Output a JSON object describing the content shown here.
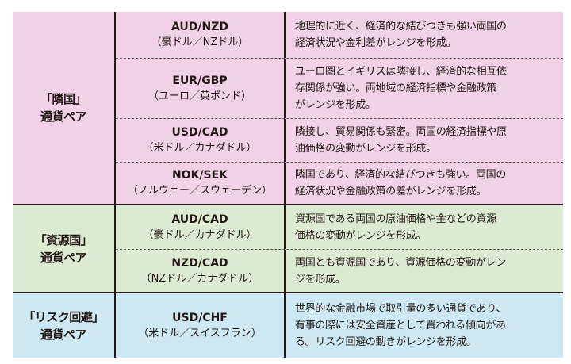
{
  "colors": {
    "neighbor": "#f0d1e6",
    "resource": "#dcead2",
    "risk": "#cde8f2"
  },
  "groups": [
    {
      "category": [
        "「隣国」",
        "通貨ペア"
      ],
      "rows": [
        {
          "code": "AUD/NZD",
          "name": "（豪ドル／NZドル）",
          "desc": [
            "地理的に近く、経済的な結びつきも強い両国の",
            "経済状況や金利差がレンジを形成。"
          ]
        },
        {
          "code": "EUR/GBP",
          "name": "（ユーロ／英ポンド）",
          "desc": [
            "ユーロ圏とイギリスは隣接し、経済的な相互依",
            "存関係が強い。両地域の経済指標や金融政策",
            "がレンジを形成。"
          ]
        },
        {
          "code": "USD/CAD",
          "name": "（米ドル／カナダドル）",
          "desc": [
            "隣接し、貿易関係も緊密。両国の経済指標や原",
            "油価格の変動がレンジを形成。"
          ]
        },
        {
          "code": "NOK/SEK",
          "name": "（ノルウェー／スウェーデン）",
          "desc": [
            "隣国であり、経済的な結びつきも強い。両国の",
            "経済状況や金融政策の差がレンジを形成。"
          ]
        }
      ]
    },
    {
      "category": [
        "「資源国」",
        "通貨ペア"
      ],
      "rows": [
        {
          "code": "AUD/CAD",
          "name": "（豪ドル／カナダドル）",
          "desc": [
            "資源国である両国の原油価格や金などの資源",
            "価格の変動がレンジを形成。"
          ]
        },
        {
          "code": "NZD/CAD",
          "name": "（NZドル／カナダドル）",
          "desc": [
            "両国とも資源国であり、資源価格の変動がレン",
            "ジを形成。"
          ]
        }
      ]
    },
    {
      "category": [
        "「リスク回避」",
        "通貨ペア"
      ],
      "rows": [
        {
          "code": "USD/CHF",
          "name": "（米ドル／スイスフラン）",
          "desc": [
            "世界的な金融市場で取引量の多い通貨であり、",
            "有事の際には安全資産として買われる傾向があ",
            "る。リスク回避の動きがレンジを形成。"
          ]
        }
      ]
    }
  ]
}
